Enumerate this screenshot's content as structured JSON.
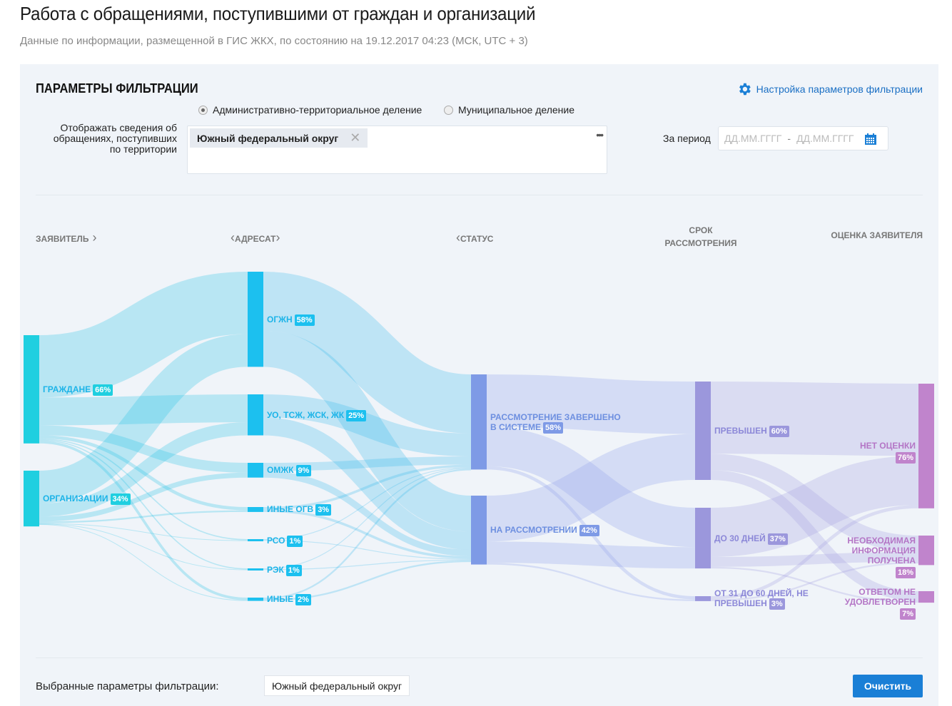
{
  "header": {
    "title": "Работа с обращениями, поступившими от граждан и организаций",
    "subtitle": "Данные по информации, размещенной в ГИС ЖКХ, по состоянию на 19.12.2017 04:23 (МСК, UTC + 3)"
  },
  "filters": {
    "heading": "ПАРАМЕТРЫ ФИЛЬТРАЦИИ",
    "settings_link": "Настройка параметров фильтрации",
    "radio_options": [
      {
        "label": "Административно-территориальное деление",
        "selected": true
      },
      {
        "label": "Муниципальное деление",
        "selected": false
      }
    ],
    "territory_label": "Отображать сведения об обращениях, поступивших по территории",
    "territory_chip": "Южный федеральный округ",
    "territory_more": "•••",
    "period_label": "За период",
    "date_from_placeholder": "ДД.ММ.ГГГГ",
    "date_sep": "-",
    "date_to_placeholder": "ДД.ММ.ГГГГ"
  },
  "columns": {
    "applicant": "ЗАЯВИТЕЛЬ",
    "addressee": "АДРЕСАТ",
    "status": "СТАТУС",
    "term": "СРОК РАССМОТРЕНИЯ",
    "rating": "ОЦЕНКА ЗАЯВИТЕЛЯ"
  },
  "colors": {
    "applicant": "#1fcfe0",
    "addressee": "#1cc0ef",
    "status": "#7e9ae6",
    "term": "#9b97dc",
    "rating": "#c084cc",
    "label_blue": "#1db4e8",
    "label_status": "#6d8fe0",
    "label_term": "#8c88d8",
    "label_rating": "#b476c6",
    "accent": "#1a7fd6"
  },
  "chart_data": {
    "type": "sankey",
    "nodes": [
      {
        "id": "g",
        "col": 0,
        "label": "ГРАЖДАНЕ",
        "pct": "66%",
        "value": 66
      },
      {
        "id": "o",
        "col": 0,
        "label": "ОРГАНИЗАЦИИ",
        "pct": "34%",
        "value": 34
      },
      {
        "id": "ogzhn",
        "col": 1,
        "label": "ОГЖН",
        "pct": "58%",
        "value": 58
      },
      {
        "id": "uo",
        "col": 1,
        "label": "УО, ТСЖ, ЖСК, ЖК",
        "pct": "25%",
        "value": 25
      },
      {
        "id": "omzhk",
        "col": 1,
        "label": "ОМЖК",
        "pct": "9%",
        "value": 9
      },
      {
        "id": "iogv",
        "col": 1,
        "label": "ИНЫЕ ОГВ",
        "pct": "3%",
        "value": 3
      },
      {
        "id": "rso",
        "col": 1,
        "label": "РСО",
        "pct": "1%",
        "value": 1
      },
      {
        "id": "rek",
        "col": 1,
        "label": "РЭК",
        "pct": "1%",
        "value": 1
      },
      {
        "id": "other",
        "col": 1,
        "label": "ИНЫЕ",
        "pct": "2%",
        "value": 2
      },
      {
        "id": "done",
        "col": 2,
        "label": "РАССМОТРЕНИЕ ЗАВЕРШЕНО В СИСТЕМЕ",
        "pct": "58%",
        "value": 58
      },
      {
        "id": "pending",
        "col": 2,
        "label": "НА РАССМОТРЕНИИ",
        "pct": "42%",
        "value": 42
      },
      {
        "id": "over",
        "col": 3,
        "label": "ПРЕВЫШЕН",
        "pct": "60%",
        "value": 60
      },
      {
        "id": "d30",
        "col": 3,
        "label": "ДО 30 ДНЕЙ",
        "pct": "37%",
        "value": 37
      },
      {
        "id": "d60",
        "col": 3,
        "label": "ОТ 31 ДО 60 ДНЕЙ, НЕ ПРЕВЫШЕН",
        "pct": "3%",
        "value": 3
      },
      {
        "id": "none",
        "col": 4,
        "label": "НЕТ ОЦЕНКИ",
        "pct": "76%",
        "value": 76
      },
      {
        "id": "info",
        "col": 4,
        "label": "НЕОБХОДИМАЯ ИНФОРМАЦИЯ ПОЛУЧЕНА",
        "pct": "18%",
        "value": 18
      },
      {
        "id": "unsat",
        "col": 4,
        "label": "ОТВЕТОМ НЕ УДОВЛЕТВОРЕН",
        "pct": "7%",
        "value": 7
      }
    ],
    "links": [
      [
        "g",
        "ogzhn",
        38
      ],
      [
        "g",
        "uo",
        17
      ],
      [
        "g",
        "omzhk",
        6
      ],
      [
        "g",
        "iogv",
        2
      ],
      [
        "g",
        "rso",
        0.7
      ],
      [
        "g",
        "rek",
        0.7
      ],
      [
        "g",
        "other",
        1.6
      ],
      [
        "o",
        "ogzhn",
        20
      ],
      [
        "o",
        "uo",
        8
      ],
      [
        "o",
        "omzhk",
        3
      ],
      [
        "o",
        "iogv",
        1
      ],
      [
        "o",
        "rso",
        0.3
      ],
      [
        "o",
        "rek",
        0.3
      ],
      [
        "o",
        "other",
        0.4
      ],
      [
        "ogzhn",
        "done",
        36
      ],
      [
        "ogzhn",
        "pending",
        22
      ],
      [
        "uo",
        "done",
        14
      ],
      [
        "uo",
        "pending",
        11
      ],
      [
        "omzhk",
        "done",
        5
      ],
      [
        "omzhk",
        "pending",
        4
      ],
      [
        "iogv",
        "done",
        1.5
      ],
      [
        "iogv",
        "pending",
        1.5
      ],
      [
        "rso",
        "done",
        0.5
      ],
      [
        "rso",
        "pending",
        0.5
      ],
      [
        "rek",
        "done",
        0.5
      ],
      [
        "rek",
        "pending",
        0.5
      ],
      [
        "other",
        "done",
        1
      ],
      [
        "other",
        "pending",
        1
      ],
      [
        "done",
        "over",
        32
      ],
      [
        "done",
        "d30",
        24
      ],
      [
        "done",
        "d60",
        2
      ],
      [
        "pending",
        "over",
        28
      ],
      [
        "pending",
        "d30",
        13
      ],
      [
        "pending",
        "d60",
        1
      ],
      [
        "over",
        "none",
        44
      ],
      [
        "over",
        "info",
        10
      ],
      [
        "over",
        "unsat",
        6
      ],
      [
        "d30",
        "none",
        30
      ],
      [
        "d30",
        "info",
        6
      ],
      [
        "d30",
        "unsat",
        1
      ],
      [
        "d60",
        "none",
        2
      ],
      [
        "d60",
        "info",
        1
      ]
    ]
  },
  "footer": {
    "selected_label": "Выбранные параметры фильтрации:",
    "selected_chip": "Южный федеральный округ",
    "clear_button": "Очистить"
  }
}
